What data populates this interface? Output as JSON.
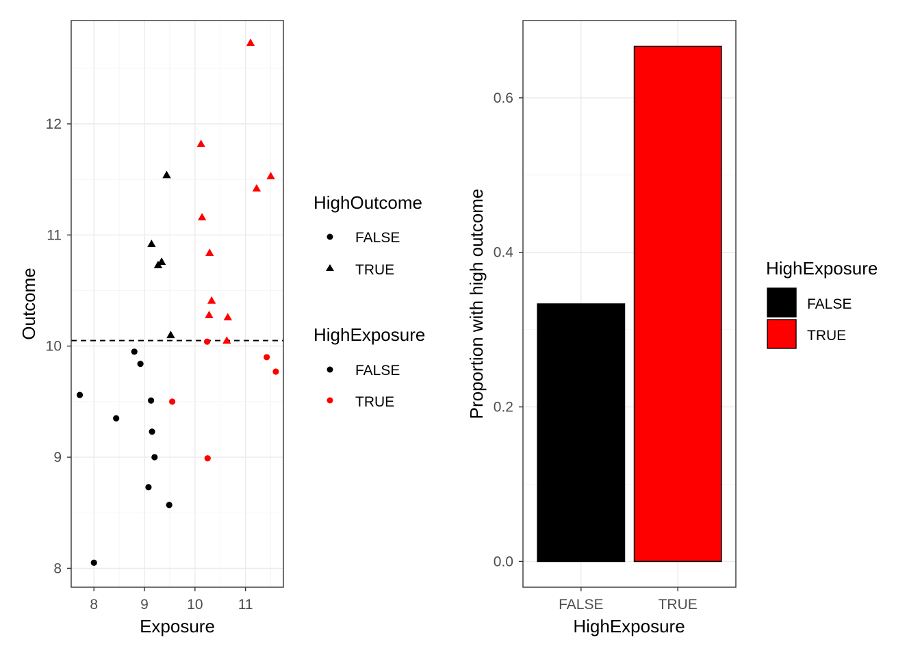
{
  "chart_data": [
    {
      "type": "scatter",
      "title": "",
      "xlabel": "Exposure",
      "ylabel": "Outcome",
      "xlim": [
        7.55,
        11.75
      ],
      "ylim": [
        7.83,
        12.93
      ],
      "xticks": [
        8,
        9,
        10,
        11
      ],
      "xtick_labels": [
        "8",
        "9",
        "10",
        "11"
      ],
      "yticks": [
        8,
        9,
        10,
        11,
        12
      ],
      "ytick_labels": [
        "8",
        "9",
        "10",
        "11",
        "12"
      ],
      "grid": true,
      "reference_line": {
        "axis": "y",
        "value": 10.05,
        "style": "dashed"
      },
      "legends": [
        {
          "title": "HighOutcome",
          "mapping": "shape",
          "entries": [
            {
              "label": "FALSE",
              "shape": "circle"
            },
            {
              "label": "TRUE",
              "shape": "triangle"
            }
          ]
        },
        {
          "title": "HighExposure",
          "mapping": "color",
          "entries": [
            {
              "label": "FALSE",
              "color": "#000000"
            },
            {
              "label": "TRUE",
              "color": "#ff0000"
            }
          ]
        }
      ],
      "points": [
        {
          "x": 7.72,
          "y": 9.56,
          "high_outcome": false,
          "high_exposure": false
        },
        {
          "x": 8.0,
          "y": 8.05,
          "high_outcome": false,
          "high_exposure": false
        },
        {
          "x": 8.44,
          "y": 9.35,
          "high_outcome": false,
          "high_exposure": false
        },
        {
          "x": 8.8,
          "y": 9.95,
          "high_outcome": false,
          "high_exposure": false
        },
        {
          "x": 8.92,
          "y": 9.84,
          "high_outcome": false,
          "high_exposure": false
        },
        {
          "x": 9.08,
          "y": 8.73,
          "high_outcome": false,
          "high_exposure": false
        },
        {
          "x": 9.13,
          "y": 9.51,
          "high_outcome": false,
          "high_exposure": false
        },
        {
          "x": 9.15,
          "y": 9.23,
          "high_outcome": false,
          "high_exposure": false
        },
        {
          "x": 9.2,
          "y": 9.0,
          "high_outcome": false,
          "high_exposure": false
        },
        {
          "x": 9.49,
          "y": 8.57,
          "high_outcome": false,
          "high_exposure": false
        },
        {
          "x": 9.55,
          "y": 9.5,
          "high_outcome": false,
          "high_exposure": true
        },
        {
          "x": 10.24,
          "y": 10.04,
          "high_outcome": false,
          "high_exposure": true
        },
        {
          "x": 10.25,
          "y": 8.99,
          "high_outcome": false,
          "high_exposure": true
        },
        {
          "x": 11.42,
          "y": 9.9,
          "high_outcome": false,
          "high_exposure": true
        },
        {
          "x": 11.6,
          "y": 9.77,
          "high_outcome": false,
          "high_exposure": true
        },
        {
          "x": 9.14,
          "y": 10.92,
          "high_outcome": true,
          "high_exposure": false
        },
        {
          "x": 9.27,
          "y": 10.73,
          "high_outcome": true,
          "high_exposure": false
        },
        {
          "x": 9.34,
          "y": 10.76,
          "high_outcome": true,
          "high_exposure": false
        },
        {
          "x": 9.44,
          "y": 11.54,
          "high_outcome": true,
          "high_exposure": false
        },
        {
          "x": 9.52,
          "y": 10.1,
          "high_outcome": true,
          "high_exposure": false
        },
        {
          "x": 10.12,
          "y": 11.82,
          "high_outcome": true,
          "high_exposure": true
        },
        {
          "x": 10.14,
          "y": 11.16,
          "high_outcome": true,
          "high_exposure": true
        },
        {
          "x": 10.28,
          "y": 10.28,
          "high_outcome": true,
          "high_exposure": true
        },
        {
          "x": 10.29,
          "y": 10.84,
          "high_outcome": true,
          "high_exposure": true
        },
        {
          "x": 10.33,
          "y": 10.41,
          "high_outcome": true,
          "high_exposure": true
        },
        {
          "x": 10.63,
          "y": 10.05,
          "high_outcome": true,
          "high_exposure": true
        },
        {
          "x": 10.65,
          "y": 10.26,
          "high_outcome": true,
          "high_exposure": true
        },
        {
          "x": 11.1,
          "y": 12.73,
          "high_outcome": true,
          "high_exposure": true
        },
        {
          "x": 11.22,
          "y": 11.42,
          "high_outcome": true,
          "high_exposure": true
        },
        {
          "x": 11.5,
          "y": 11.53,
          "high_outcome": true,
          "high_exposure": true
        }
      ]
    },
    {
      "type": "bar",
      "title": "",
      "xlabel": "HighExposure",
      "ylabel": "Proportion with high outcome",
      "categories": [
        "FALSE",
        "TRUE"
      ],
      "values": [
        0.3333,
        0.6667
      ],
      "colors": [
        "#000000",
        "#ff0000"
      ],
      "ylim": [
        -0.0333,
        0.7
      ],
      "yticks": [
        0.0,
        0.2,
        0.4,
        0.6
      ],
      "ytick_labels": [
        "0.0",
        "0.2",
        "0.4",
        "0.6"
      ],
      "grid": true,
      "legend": {
        "title": "HighExposure",
        "entries": [
          {
            "label": "FALSE",
            "color": "#000000"
          },
          {
            "label": "TRUE",
            "color": "#ff0000"
          }
        ]
      }
    }
  ]
}
